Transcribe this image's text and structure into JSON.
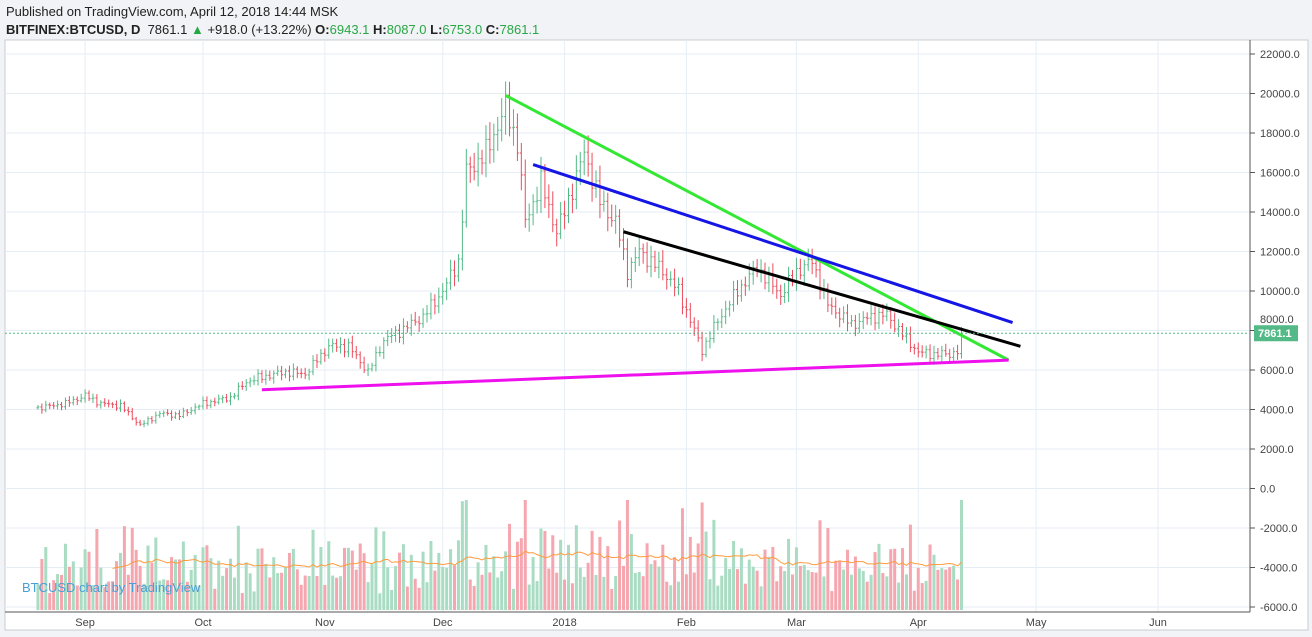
{
  "header": {
    "published": "Published on TradingView.com, April 12, 2018 14:44 MSK",
    "symbol": "BITFINEX:BTCUSD, D",
    "last": "7861.1",
    "change": "+918.0 (+13.22%)",
    "o_label": "O:",
    "o": "6943.1",
    "h_label": "H:",
    "h": "8087.0",
    "l_label": "L:",
    "l": "6753.0",
    "c_label": "C:",
    "c": "7861.1"
  },
  "watermark": "BTCUSD chart by TradingView",
  "chart_data": {
    "type": "candlestick",
    "ylim": [
      -6000,
      22000
    ],
    "yticks": [
      22000,
      20000,
      18000,
      16000,
      14000,
      12000,
      10000,
      8000,
      6000,
      4000,
      2000,
      0,
      -2000,
      -4000,
      -6000
    ],
    "ytick_labels": [
      "22000.0",
      "20000.0",
      "18000.0",
      "16000.0",
      "14000.0",
      "12000.0",
      "10000.0",
      "8000.0",
      "6000.0",
      "4000.0",
      "2000.0",
      "0.0",
      "-2000.0",
      "-4000.0",
      "-6000.0"
    ],
    "xticks": [
      {
        "date": "2017-09-01",
        "label": "Sep"
      },
      {
        "date": "2017-10-01",
        "label": "Oct"
      },
      {
        "date": "2017-11-01",
        "label": "Nov"
      },
      {
        "date": "2017-12-01",
        "label": "Dec"
      },
      {
        "date": "2018-01-01",
        "label": "2018"
      },
      {
        "date": "2018-02-01",
        "label": "Feb"
      },
      {
        "date": "2018-03-01",
        "label": "Mar"
      },
      {
        "date": "2018-04-01",
        "label": "Apr"
      },
      {
        "date": "2018-05-01",
        "label": "May"
      },
      {
        "date": "2018-06-01",
        "label": "Jun"
      }
    ],
    "last_price": 7861.1,
    "last_price_label": "7861.1",
    "grid": true,
    "colors": {
      "up": "#53b987",
      "down": "#eb4d5c",
      "up_vol": "#a9dcc3",
      "down_vol": "#f5a6ae",
      "vol_ma": "#ff9a3c",
      "price_label": "#53b987"
    },
    "close_anchors": [
      [
        "2017-08-20",
        4080
      ],
      [
        "2017-08-27",
        4300
      ],
      [
        "2017-09-01",
        4700
      ],
      [
        "2017-09-05",
        4300
      ],
      [
        "2017-09-10",
        4200
      ],
      [
        "2017-09-15",
        3200
      ],
      [
        "2017-09-20",
        3800
      ],
      [
        "2017-09-25",
        3700
      ],
      [
        "2017-10-01",
        4300
      ],
      [
        "2017-10-08",
        4600
      ],
      [
        "2017-10-12",
        5400
      ],
      [
        "2017-10-15",
        5600
      ],
      [
        "2017-10-22",
        5900
      ],
      [
        "2017-10-27",
        5800
      ],
      [
        "2017-11-02",
        7200
      ],
      [
        "2017-11-07",
        7200
      ],
      [
        "2017-11-12",
        5900
      ],
      [
        "2017-11-16",
        7500
      ],
      [
        "2017-11-22",
        8200
      ],
      [
        "2017-11-26",
        8700
      ],
      [
        "2017-12-01",
        10000
      ],
      [
        "2017-12-05",
        11500
      ],
      [
        "2017-12-07",
        16000
      ],
      [
        "2017-12-12",
        17000
      ],
      [
        "2017-12-17",
        19300
      ],
      [
        "2017-12-20",
        17500
      ],
      [
        "2017-12-22",
        13500
      ],
      [
        "2017-12-26",
        15500
      ],
      [
        "2017-12-30",
        13000
      ],
      [
        "2018-01-01",
        14000
      ],
      [
        "2018-01-06",
        17000
      ],
      [
        "2018-01-10",
        14500
      ],
      [
        "2018-01-14",
        13500
      ],
      [
        "2018-01-17",
        11000
      ],
      [
        "2018-01-20",
        12000
      ],
      [
        "2018-01-26",
        11000
      ],
      [
        "2018-01-30",
        10000
      ],
      [
        "2018-02-02",
        8500
      ],
      [
        "2018-02-05",
        7000
      ],
      [
        "2018-02-09",
        8500
      ],
      [
        "2018-02-14",
        10000
      ],
      [
        "2018-02-19",
        11200
      ],
      [
        "2018-02-25",
        9800
      ],
      [
        "2018-03-01",
        11000
      ],
      [
        "2018-03-05",
        11500
      ],
      [
        "2018-03-09",
        9300
      ],
      [
        "2018-03-15",
        8300
      ],
      [
        "2018-03-20",
        8700
      ],
      [
        "2018-03-24",
        8800
      ],
      [
        "2018-03-28",
        7800
      ],
      [
        "2018-04-01",
        6900
      ],
      [
        "2018-04-05",
        6800
      ],
      [
        "2018-04-09",
        6800
      ],
      [
        "2018-04-11",
        6943
      ],
      [
        "2018-04-12",
        7861
      ]
    ],
    "trendlines": [
      {
        "color": "#33e833",
        "from": [
          "2017-12-17",
          19900
        ],
        "to": [
          "2018-04-24",
          6500
        ]
      },
      {
        "color": "#1515e6",
        "from": [
          "2017-12-24",
          16400
        ],
        "to": [
          "2018-04-25",
          8400
        ]
      },
      {
        "color": "#000000",
        "from": [
          "2018-01-16",
          13000
        ],
        "to": [
          "2018-04-27",
          7200
        ]
      },
      {
        "color": "#ee11ee",
        "from": [
          "2017-10-16",
          5000
        ],
        "to": [
          "2018-04-24",
          6500
        ]
      }
    ]
  }
}
